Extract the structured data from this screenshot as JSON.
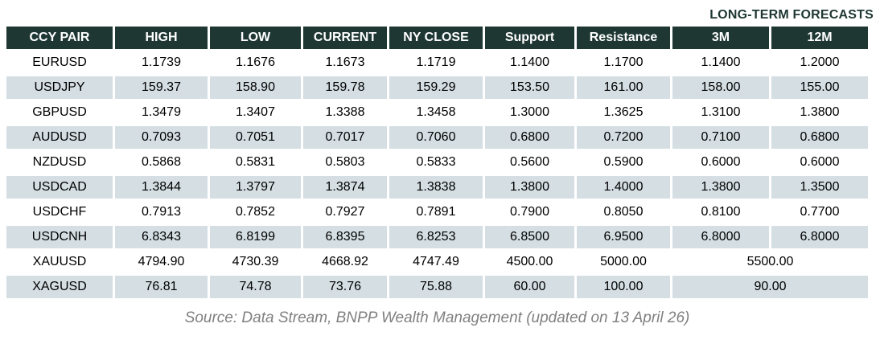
{
  "title": "LONG-TERM FORECASTS",
  "colors": {
    "header_bg": "#1e3732",
    "header_text": "#ffffff",
    "stripe_bg": "#d4dee3",
    "body_text": "#000000",
    "title_text": "#1e3732",
    "source_text": "#808080"
  },
  "chart_data": {
    "type": "table",
    "title": "LONG-TERM FORECASTS",
    "columns": [
      "CCY PAIR",
      "HIGH",
      "LOW",
      "CURRENT",
      "NY CLOSE",
      "Support",
      "Resistance",
      "3M",
      "12M"
    ],
    "rows": [
      {
        "pair": "EURUSD",
        "values": [
          "1.1739",
          "1.1676",
          "1.1673",
          "1.1719",
          "1.1400",
          "1.1700",
          "1.1400",
          "1.2000"
        ],
        "merged_forecast": null
      },
      {
        "pair": "USDJPY",
        "values": [
          "159.37",
          "158.90",
          "159.78",
          "159.29",
          "153.50",
          "161.00",
          "158.00",
          "155.00"
        ],
        "merged_forecast": null
      },
      {
        "pair": "GBPUSD",
        "values": [
          "1.3479",
          "1.3407",
          "1.3388",
          "1.3458",
          "1.3000",
          "1.3625",
          "1.3100",
          "1.3800"
        ],
        "merged_forecast": null
      },
      {
        "pair": "AUDUSD",
        "values": [
          "0.7093",
          "0.7051",
          "0.7017",
          "0.7060",
          "0.6800",
          "0.7200",
          "0.7100",
          "0.6800"
        ],
        "merged_forecast": null
      },
      {
        "pair": "NZDUSD",
        "values": [
          "0.5868",
          "0.5831",
          "0.5803",
          "0.5833",
          "0.5600",
          "0.5900",
          "0.6000",
          "0.6000"
        ],
        "merged_forecast": null
      },
      {
        "pair": "USDCAD",
        "values": [
          "1.3844",
          "1.3797",
          "1.3874",
          "1.3838",
          "1.3800",
          "1.4000",
          "1.3800",
          "1.3500"
        ],
        "merged_forecast": null
      },
      {
        "pair": "USDCHF",
        "values": [
          "0.7913",
          "0.7852",
          "0.7927",
          "0.7891",
          "0.7900",
          "0.8050",
          "0.8100",
          "0.7700"
        ],
        "merged_forecast": null
      },
      {
        "pair": "USDCNH",
        "values": [
          "6.8343",
          "6.8199",
          "6.8395",
          "6.8253",
          "6.8500",
          "6.9500",
          "6.8000",
          "6.8000"
        ],
        "merged_forecast": null
      },
      {
        "pair": "XAUUSD",
        "values": [
          "4794.90",
          "4730.39",
          "4668.92",
          "4747.49",
          "4500.00",
          "5000.00"
        ],
        "merged_forecast": "5500.00"
      },
      {
        "pair": "XAGUSD",
        "values": [
          "76.81",
          "74.78",
          "73.76",
          "75.88",
          "60.00",
          "100.00"
        ],
        "merged_forecast": "90.00"
      }
    ]
  },
  "source_note": "Source: Data Stream, BNPP Wealth Management (updated on 13 April 26)"
}
